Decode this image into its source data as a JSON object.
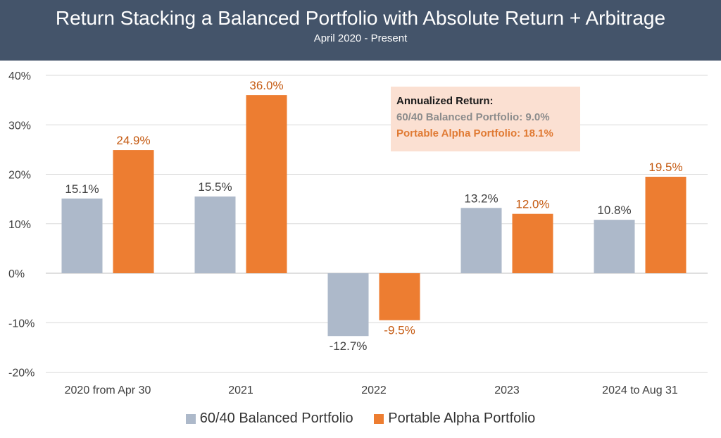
{
  "header": {
    "title": "Return Stacking a Balanced Portfolio with Absolute Return + Arbitrage",
    "subtitle": "April 2020 - Present"
  },
  "annotation": {
    "title": "Annualized Return:",
    "balanced": "60/40 Balanced Portfolio: 9.0%",
    "alpha": "Portable Alpha Portfolio: 18.1%"
  },
  "chart_data": {
    "type": "bar",
    "title": "Return Stacking a Balanced Portfolio with Absolute Return + Arbitrage",
    "subtitle": "April 2020 - Present",
    "categories": [
      "2020 from Apr 30",
      "2021",
      "2022",
      "2023",
      "2024 to Aug 31"
    ],
    "series": [
      {
        "name": "60/40 Balanced Portfolio",
        "values": [
          15.1,
          15.5,
          -12.7,
          13.2,
          10.8
        ],
        "labels": [
          "15.1%",
          "15.5%",
          "-12.7%",
          "13.2%",
          "10.8%"
        ],
        "color": "#adb9ca",
        "label_color": "#404040"
      },
      {
        "name": "Portable Alpha Portfolio",
        "values": [
          24.9,
          36.0,
          -9.5,
          12.0,
          19.5
        ],
        "labels": [
          "24.9%",
          "36.0%",
          "-9.5%",
          "12.0%",
          "19.5%"
        ],
        "color": "#ed7d31",
        "label_color": "#c55a11"
      }
    ],
    "yticks": [
      "40%",
      "30%",
      "20%",
      "10%",
      "0%",
      "-10%",
      "-20%"
    ],
    "ylim": [
      -20,
      40
    ],
    "grid": true,
    "legend_position": "bottom"
  }
}
